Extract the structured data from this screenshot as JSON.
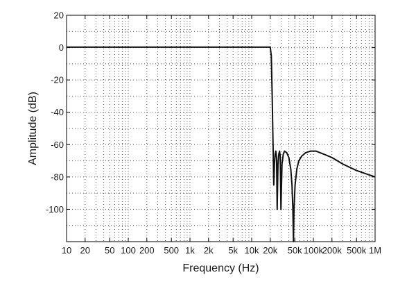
{
  "chart_data": {
    "type": "line",
    "title": "",
    "xlabel": "Frequency (Hz)",
    "ylabel": "Amplitude (dB)",
    "x_scale": "log",
    "xlim": [
      10,
      1000000
    ],
    "ylim": [
      -120,
      20
    ],
    "grid": true,
    "x_ticks": [
      {
        "value": 10,
        "label": "10"
      },
      {
        "value": 20,
        "label": "20"
      },
      {
        "value": 50,
        "label": "50"
      },
      {
        "value": 100,
        "label": "100"
      },
      {
        "value": 200,
        "label": "200"
      },
      {
        "value": 500,
        "label": "500"
      },
      {
        "value": 1000,
        "label": "1k"
      },
      {
        "value": 2000,
        "label": "2k"
      },
      {
        "value": 5000,
        "label": "5k"
      },
      {
        "value": 10000,
        "label": "10k"
      },
      {
        "value": 20000,
        "label": "20k"
      },
      {
        "value": 50000,
        "label": "50k"
      },
      {
        "value": 100000,
        "label": "100k"
      },
      {
        "value": 200000,
        "label": "200k"
      },
      {
        "value": 500000,
        "label": "500k"
      },
      {
        "value": 1000000,
        "label": "1M"
      }
    ],
    "y_ticks": [
      {
        "value": 20,
        "label": "20"
      },
      {
        "value": 0,
        "label": "0"
      },
      {
        "value": -20,
        "label": "-20"
      },
      {
        "value": -40,
        "label": "-40"
      },
      {
        "value": -60,
        "label": "-60"
      },
      {
        "value": -80,
        "label": "-80"
      },
      {
        "value": -100,
        "label": "-100"
      }
    ],
    "series": [
      {
        "color": "#111111",
        "points": [
          [
            10,
            0.3
          ],
          [
            100,
            0.3
          ],
          [
            1000,
            0.3
          ],
          [
            10000,
            0.3
          ],
          [
            18000,
            0.3
          ],
          [
            20000,
            0.3
          ],
          [
            20800,
            -5
          ],
          [
            21500,
            -30
          ],
          [
            22200,
            -60
          ],
          [
            22800,
            -85
          ],
          [
            23400,
            -72
          ],
          [
            24000,
            -66
          ],
          [
            24600,
            -64
          ],
          [
            25300,
            -68
          ],
          [
            25900,
            -100
          ],
          [
            26700,
            -72
          ],
          [
            27500,
            -66
          ],
          [
            28300,
            -64
          ],
          [
            29000,
            -67
          ],
          [
            29800,
            -100
          ],
          [
            31000,
            -72
          ],
          [
            32500,
            -66
          ],
          [
            34000,
            -64
          ],
          [
            37000,
            -65
          ],
          [
            40000,
            -68
          ],
          [
            43000,
            -75
          ],
          [
            45000,
            -85
          ],
          [
            46500,
            -100
          ],
          [
            47500,
            -120
          ],
          [
            48500,
            -100
          ],
          [
            50500,
            -85
          ],
          [
            54000,
            -75
          ],
          [
            58000,
            -70
          ],
          [
            65000,
            -67
          ],
          [
            75000,
            -65
          ],
          [
            90000,
            -64
          ],
          [
            110000,
            -64
          ],
          [
            150000,
            -66
          ],
          [
            200000,
            -68
          ],
          [
            300000,
            -72
          ],
          [
            500000,
            -76
          ],
          [
            1000000,
            -80
          ]
        ]
      }
    ]
  }
}
